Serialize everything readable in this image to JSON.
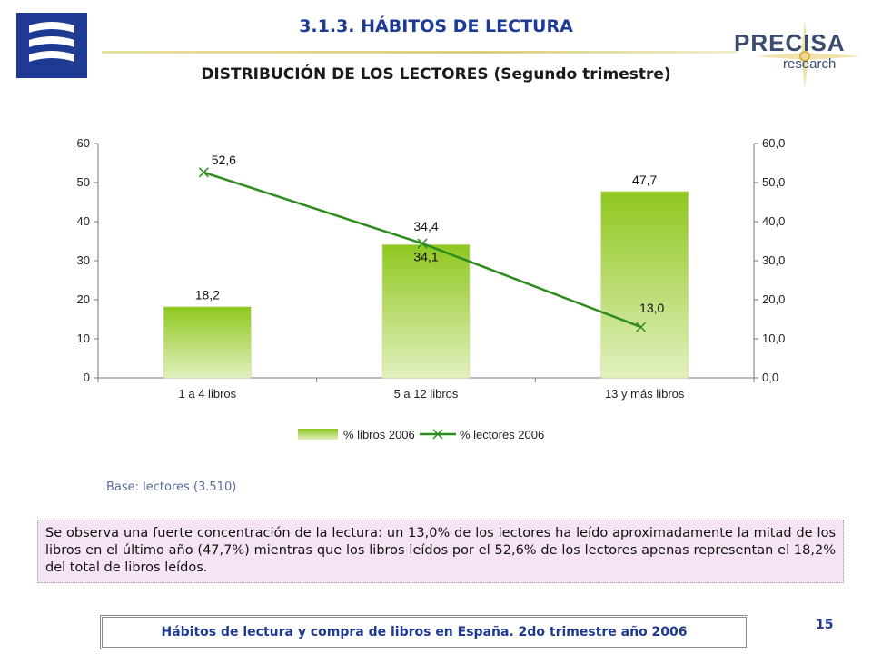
{
  "header": {
    "section_title": "3.1.3.  HÁBITOS DE LECTURA",
    "chart_title": "DISTRIBUCIÓN DE LOS LECTORES (Segundo trimestre)"
  },
  "logo_right": {
    "brand": "PRECISA",
    "sub": "research"
  },
  "chart_data": {
    "type": "bar",
    "categories": [
      "1 a 4 libros",
      "5 a 12 libros",
      "13 y más libros"
    ],
    "series": [
      {
        "name": "% libros 2006",
        "type": "bar",
        "axis": "left",
        "values": [
          18.2,
          34.1,
          47.7
        ],
        "labels": [
          "18,2",
          "34,1",
          "47,7"
        ],
        "color": "#8fc71f"
      },
      {
        "name": "% lectores 2006",
        "type": "line",
        "axis": "right",
        "values": [
          52.6,
          34.4,
          13.0
        ],
        "labels": [
          "52,6",
          "34,4",
          "13,0"
        ],
        "color": "#2e8b1e"
      }
    ],
    "left_axis": {
      "ylim": [
        0,
        60
      ],
      "ticks": [
        "0",
        "10",
        "20",
        "30",
        "40",
        "50",
        "60"
      ]
    },
    "right_axis": {
      "ylim": [
        0,
        60
      ],
      "ticks": [
        "0,0",
        "10,0",
        "20,0",
        "30,0",
        "40,0",
        "50,0",
        "60,0"
      ]
    },
    "legend": "bottom"
  },
  "base_note": "Base: lectores (3.510)",
  "note": "Se observa una fuerte concentración de la lectura: un 13,0% de los lectores ha leído aproximadamente la mitad de los libros en el último año (47,7%) mientras que los libros leídos por el 52,6% de los lectores apenas representan el 18,2% del total de libros leídos.",
  "footer": "Hábitos de lectura y compra de libros en España. 2do trimestre año 2006",
  "page_number": "15"
}
